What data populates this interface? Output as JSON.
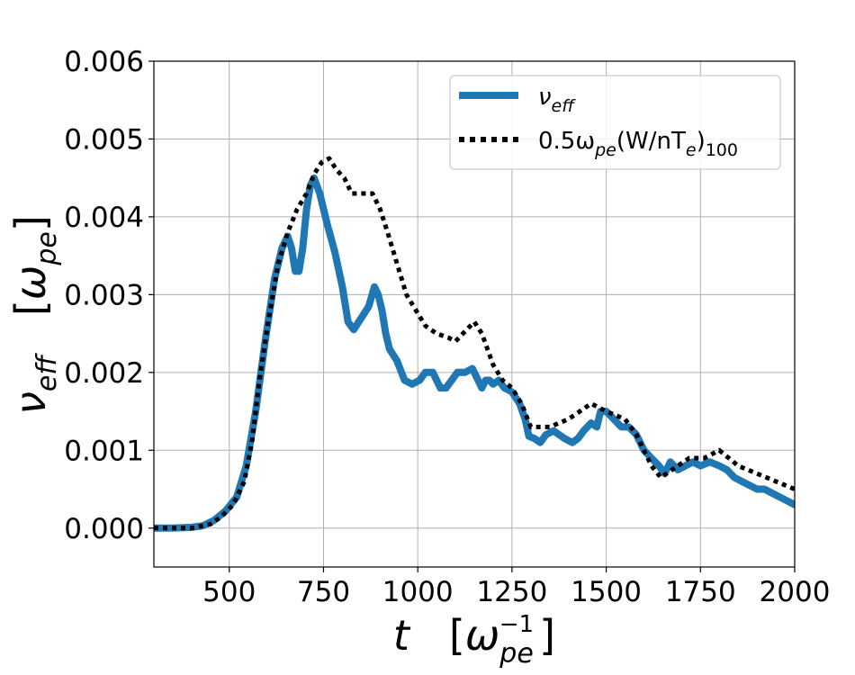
{
  "chart_data": {
    "type": "line",
    "xlabel": "t   [ω_pe^-1]",
    "ylabel": "ν_eff   [ω_pe]",
    "xlim": [
      300,
      2000
    ],
    "ylim": [
      -0.0005,
      0.006
    ],
    "x_ticks": [
      500,
      750,
      1000,
      1250,
      1500,
      1750,
      2000
    ],
    "x_tick_labels": [
      "500",
      "750",
      "1000",
      "1250",
      "1500",
      "1750",
      "2000"
    ],
    "y_ticks": [
      0.0,
      0.001,
      0.002,
      0.003,
      0.004,
      0.005,
      0.006
    ],
    "y_tick_labels": [
      "0.000",
      "0.001",
      "0.002",
      "0.003",
      "0.004",
      "0.005",
      "0.006"
    ],
    "grid": true,
    "legend_position": "top-right",
    "series": [
      {
        "name": "ν_eff",
        "legend_main": "ν",
        "legend_sub": "eff",
        "color": "#1f77b4",
        "style": "solid",
        "points": [
          [
            300,
            0.0
          ],
          [
            350,
            0.0
          ],
          [
            400,
            1e-05
          ],
          [
            430,
            3e-05
          ],
          [
            460,
            0.0001
          ],
          [
            490,
            0.00022
          ],
          [
            520,
            0.0004
          ],
          [
            545,
            0.0008
          ],
          [
            570,
            0.0015
          ],
          [
            595,
            0.0024
          ],
          [
            620,
            0.0032
          ],
          [
            640,
            0.0036
          ],
          [
            655,
            0.00375
          ],
          [
            665,
            0.0036
          ],
          [
            675,
            0.0033
          ],
          [
            685,
            0.0033
          ],
          [
            695,
            0.0036
          ],
          [
            705,
            0.0041
          ],
          [
            715,
            0.0044
          ],
          [
            725,
            0.0045
          ],
          [
            740,
            0.0043
          ],
          [
            760,
            0.0039
          ],
          [
            780,
            0.00355
          ],
          [
            800,
            0.0031
          ],
          [
            815,
            0.00265
          ],
          [
            830,
            0.00255
          ],
          [
            850,
            0.0027
          ],
          [
            870,
            0.00285
          ],
          [
            885,
            0.0031
          ],
          [
            895,
            0.003
          ],
          [
            905,
            0.0028
          ],
          [
            915,
            0.0025
          ],
          [
            925,
            0.0023
          ],
          [
            945,
            0.00215
          ],
          [
            965,
            0.0019
          ],
          [
            985,
            0.00185
          ],
          [
            1005,
            0.0019
          ],
          [
            1020,
            0.002
          ],
          [
            1040,
            0.002
          ],
          [
            1060,
            0.0018
          ],
          [
            1075,
            0.0018
          ],
          [
            1090,
            0.0019
          ],
          [
            1105,
            0.002
          ],
          [
            1125,
            0.002
          ],
          [
            1145,
            0.00205
          ],
          [
            1160,
            0.0019
          ],
          [
            1170,
            0.0018
          ],
          [
            1180,
            0.0019
          ],
          [
            1190,
            0.0019
          ],
          [
            1200,
            0.00185
          ],
          [
            1215,
            0.0019
          ],
          [
            1230,
            0.0018
          ],
          [
            1250,
            0.00175
          ],
          [
            1270,
            0.0016
          ],
          [
            1285,
            0.0014
          ],
          [
            1295,
            0.00118
          ],
          [
            1310,
            0.00115
          ],
          [
            1325,
            0.0011
          ],
          [
            1340,
            0.0012
          ],
          [
            1360,
            0.00125
          ],
          [
            1375,
            0.0012
          ],
          [
            1390,
            0.00115
          ],
          [
            1410,
            0.0011
          ],
          [
            1425,
            0.00115
          ],
          [
            1440,
            0.00125
          ],
          [
            1460,
            0.00135
          ],
          [
            1475,
            0.0013
          ],
          [
            1485,
            0.0015
          ],
          [
            1500,
            0.0015
          ],
          [
            1520,
            0.0014
          ],
          [
            1540,
            0.0013
          ],
          [
            1560,
            0.0013
          ],
          [
            1580,
            0.0012
          ],
          [
            1600,
            0.001
          ],
          [
            1620,
            0.0009
          ],
          [
            1640,
            0.0008
          ],
          [
            1655,
            0.0007
          ],
          [
            1670,
            0.00085
          ],
          [
            1690,
            0.00075
          ],
          [
            1710,
            0.0008
          ],
          [
            1730,
            0.00085
          ],
          [
            1750,
            0.0008
          ],
          [
            1775,
            0.00085
          ],
          [
            1800,
            0.0008
          ],
          [
            1820,
            0.00075
          ],
          [
            1840,
            0.00065
          ],
          [
            1860,
            0.0006
          ],
          [
            1880,
            0.00055
          ],
          [
            1900,
            0.0005
          ],
          [
            1920,
            0.0005
          ],
          [
            1940,
            0.00045
          ],
          [
            1960,
            0.0004
          ],
          [
            1980,
            0.00035
          ],
          [
            2000,
            0.0003
          ]
        ]
      },
      {
        "name": "0.5ω_pe(W/nT_e)_100",
        "legend_main": "0.5ω",
        "legend_sub": "pe",
        "legend_mid": "(W/nT",
        "legend_sub2": "e",
        "legend_end": ")",
        "legend_sub3": "100",
        "color": "#000000",
        "style": "dotted",
        "points": [
          [
            300,
            0.0
          ],
          [
            400,
            0.0
          ],
          [
            450,
            5e-05
          ],
          [
            480,
            0.00015
          ],
          [
            510,
            0.0003
          ],
          [
            540,
            0.0006
          ],
          [
            560,
            0.0011
          ],
          [
            580,
            0.0019
          ],
          [
            605,
            0.0027
          ],
          [
            630,
            0.0034
          ],
          [
            655,
            0.0038
          ],
          [
            680,
            0.0041
          ],
          [
            705,
            0.0043
          ],
          [
            725,
            0.00455
          ],
          [
            745,
            0.0047
          ],
          [
            765,
            0.00475
          ],
          [
            785,
            0.0046
          ],
          [
            805,
            0.0045
          ],
          [
            825,
            0.0043
          ],
          [
            850,
            0.0043
          ],
          [
            880,
            0.0043
          ],
          [
            900,
            0.0041
          ],
          [
            920,
            0.0038
          ],
          [
            945,
            0.0034
          ],
          [
            970,
            0.003
          ],
          [
            995,
            0.0028
          ],
          [
            1020,
            0.0026
          ],
          [
            1050,
            0.0025
          ],
          [
            1080,
            0.00245
          ],
          [
            1100,
            0.0024
          ],
          [
            1120,
            0.0025
          ],
          [
            1150,
            0.00265
          ],
          [
            1170,
            0.0025
          ],
          [
            1200,
            0.0021
          ],
          [
            1225,
            0.0019
          ],
          [
            1250,
            0.0018
          ],
          [
            1275,
            0.0016
          ],
          [
            1300,
            0.0013
          ],
          [
            1350,
            0.0013
          ],
          [
            1400,
            0.0014
          ],
          [
            1430,
            0.0015
          ],
          [
            1460,
            0.0016
          ],
          [
            1500,
            0.0015
          ],
          [
            1550,
            0.0014
          ],
          [
            1580,
            0.0012
          ],
          [
            1600,
            0.001
          ],
          [
            1620,
            0.0008
          ],
          [
            1645,
            0.00065
          ],
          [
            1660,
            0.0007
          ],
          [
            1690,
            0.0008
          ],
          [
            1720,
            0.0009
          ],
          [
            1760,
            0.0009
          ],
          [
            1800,
            0.001
          ],
          [
            1850,
            0.0008
          ],
          [
            1900,
            0.0007
          ],
          [
            1950,
            0.0006
          ],
          [
            2000,
            0.0005
          ]
        ]
      }
    ]
  }
}
